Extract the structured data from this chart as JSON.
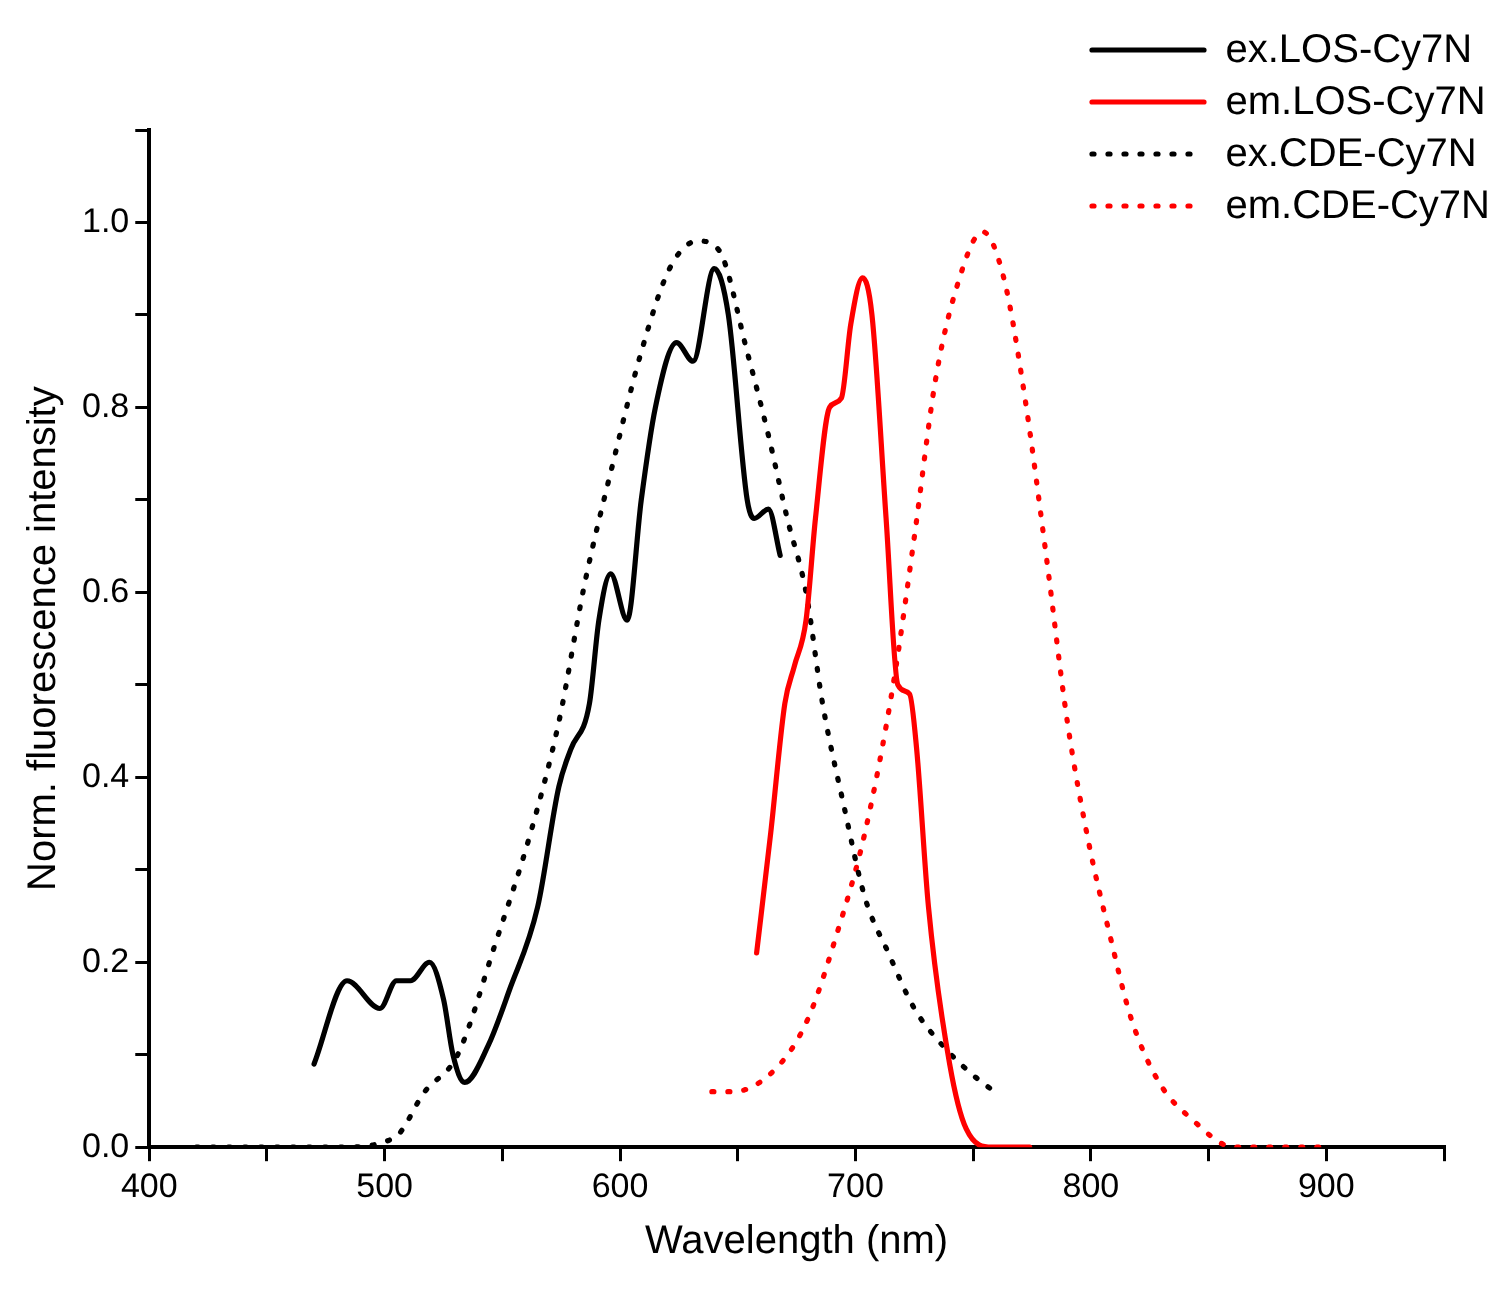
{
  "chart_data": {
    "type": "line",
    "xlabel": "Wavelength (nm)",
    "ylabel": "Norm. fluorescence intensity",
    "xlim": [
      400,
      950
    ],
    "ylim": [
      0,
      1.1
    ],
    "xticks": [
      400,
      {
        "value": 450,
        "label": null
      },
      500,
      {
        "value": 550,
        "label": null
      },
      600,
      {
        "value": 650,
        "label": null
      },
      700,
      {
        "value": 750,
        "label": null
      },
      800,
      {
        "value": 850,
        "label": null
      },
      900,
      {
        "value": 950,
        "label": null
      }
    ],
    "yticks": [
      {
        "value": 0,
        "label": "0.0"
      },
      {
        "value": 0.1,
        "label": null
      },
      {
        "value": 0.2,
        "label": "0.2"
      },
      {
        "value": 0.3,
        "label": null
      },
      {
        "value": 0.4,
        "label": "0.4"
      },
      {
        "value": 0.5,
        "label": null
      },
      {
        "value": 0.6,
        "label": "0.6"
      },
      {
        "value": 0.7,
        "label": null
      },
      {
        "value": 0.8,
        "label": "0.8"
      },
      {
        "value": 0.9,
        "label": null
      },
      {
        "value": 1.0,
        "label": "1.0"
      },
      {
        "value": 1.1,
        "label": null
      }
    ],
    "grid": false,
    "legend": "top right",
    "marker": "none",
    "series": [
      {
        "name": "ex.LOS-Cy7N",
        "color": "#000000",
        "line_style": "solid",
        "x": [
          470,
          484,
          498,
          505,
          511,
          519,
          525,
          529,
          534,
          544,
          553,
          565,
          574,
          579,
          587,
          591,
          596,
          603,
          609,
          615,
          624,
          631,
          640,
          646,
          654,
          657,
          663,
          668
        ],
        "values": [
          0.09,
          0.18,
          0.15,
          0.18,
          0.18,
          0.2,
          0.16,
          0.1,
          0.07,
          0.11,
          0.17,
          0.26,
          0.39,
          0.43,
          0.48,
          0.57,
          0.62,
          0.57,
          0.7,
          0.8,
          0.87,
          0.85,
          0.95,
          0.9,
          0.7,
          0.68,
          0.69,
          0.64
        ]
      },
      {
        "name": "em.LOS-Cy7N",
        "color": "#ff0000",
        "line_style": "solid",
        "x": [
          658,
          664,
          670,
          674,
          679,
          683,
          689,
          694,
          698,
          703,
          707,
          713,
          718,
          723,
          726,
          731,
          740,
          747,
          758,
          774
        ],
        "values": [
          0.21,
          0.34,
          0.48,
          0.52,
          0.57,
          0.68,
          0.8,
          0.81,
          0.89,
          0.94,
          0.9,
          0.68,
          0.5,
          0.49,
          0.43,
          0.26,
          0.09,
          0.02,
          0.0,
          0.0
        ]
      },
      {
        "name": "ex.CDE-Cy7N",
        "color": "#000000",
        "line_style": "dotted",
        "x": [
          420,
          480,
          504,
          517,
          531,
          547,
          562,
          574,
          585,
          597,
          609,
          621,
          633,
          642,
          654,
          663,
          671,
          679,
          686,
          695,
          704,
          714,
          725,
          737,
          749,
          759
        ],
        "values": [
          0.0,
          0.0,
          0.01,
          0.06,
          0.1,
          0.22,
          0.34,
          0.46,
          0.61,
          0.74,
          0.86,
          0.95,
          0.98,
          0.97,
          0.86,
          0.77,
          0.68,
          0.6,
          0.48,
          0.37,
          0.27,
          0.21,
          0.15,
          0.11,
          0.08,
          0.06
        ]
      },
      {
        "name": "em.CDE-Cy7N",
        "color": "#ff0000",
        "line_style": "dotted",
        "x": [
          639,
          648,
          668,
          680,
          692,
          704,
          716,
          725,
          734,
          743,
          754,
          763,
          772,
          781,
          790,
          799,
          808,
          817,
          829,
          843,
          861,
          897
        ],
        "values": [
          0.06,
          0.06,
          0.09,
          0.14,
          0.23,
          0.34,
          0.5,
          0.66,
          0.83,
          0.93,
          0.99,
          0.94,
          0.81,
          0.64,
          0.46,
          0.33,
          0.23,
          0.14,
          0.07,
          0.03,
          0.0,
          0.0
        ]
      }
    ]
  }
}
